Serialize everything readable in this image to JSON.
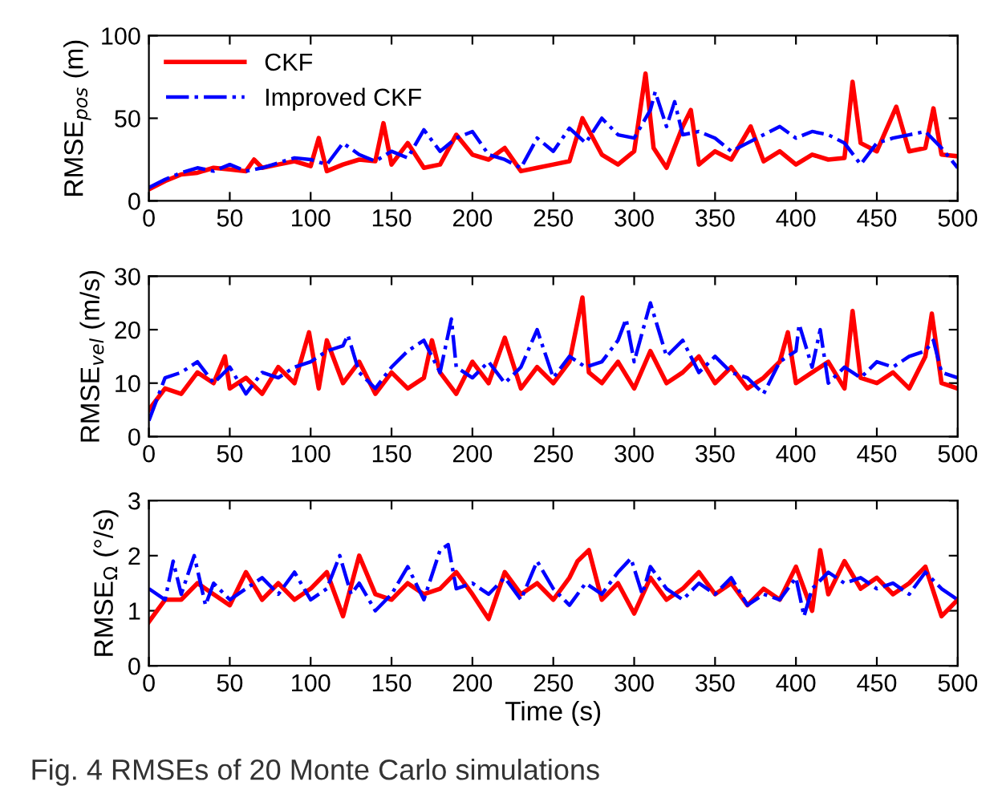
{
  "chart_data": [
    {
      "type": "line",
      "ylabel": "RMSE$_{pos}$ (m)",
      "xlim": [
        0,
        500
      ],
      "ylim": [
        0,
        100
      ],
      "xticks": [
        0,
        50,
        100,
        150,
        200,
        250,
        300,
        350,
        400,
        450,
        500
      ],
      "yticks": [
        0,
        50,
        100
      ],
      "grid": false,
      "legend": "top left",
      "series": [
        {
          "name": "CKF",
          "color": "#ff0000",
          "line_style": "solid",
          "x": [
            0,
            10,
            20,
            30,
            40,
            50,
            60,
            65,
            70,
            80,
            90,
            100,
            105,
            110,
            120,
            130,
            140,
            145,
            150,
            160,
            170,
            180,
            190,
            200,
            210,
            220,
            230,
            240,
            250,
            260,
            268,
            280,
            290,
            300,
            307,
            312,
            320,
            330,
            335,
            340,
            350,
            360,
            372,
            380,
            390,
            400,
            410,
            420,
            430,
            435,
            440,
            450,
            462,
            470,
            480,
            485,
            490,
            500
          ],
          "values": [
            7,
            12,
            16,
            17,
            20,
            19,
            18,
            25,
            20,
            22,
            24,
            21,
            38,
            18,
            22,
            25,
            24,
            47,
            22,
            35,
            20,
            22,
            40,
            28,
            25,
            32,
            18,
            20,
            22,
            24,
            50,
            28,
            22,
            30,
            77,
            32,
            20,
            45,
            55,
            22,
            30,
            25,
            45,
            24,
            30,
            22,
            28,
            25,
            26,
            72,
            35,
            30,
            57,
            30,
            32,
            56,
            28,
            27
          ]
        },
        {
          "name": "Improved CKF",
          "color": "#0000ff",
          "line_style": "dashed",
          "x": [
            0,
            10,
            20,
            30,
            40,
            50,
            60,
            70,
            80,
            90,
            100,
            110,
            120,
            130,
            140,
            150,
            160,
            170,
            180,
            190,
            200,
            210,
            220,
            230,
            240,
            250,
            260,
            270,
            280,
            290,
            300,
            310,
            313,
            320,
            325,
            330,
            340,
            350,
            360,
            370,
            380,
            390,
            400,
            410,
            420,
            430,
            440,
            450,
            460,
            470,
            480,
            490,
            500
          ],
          "values": [
            8,
            13,
            17,
            20,
            18,
            22,
            18,
            20,
            23,
            26,
            25,
            22,
            35,
            28,
            24,
            30,
            26,
            43,
            30,
            38,
            42,
            28,
            25,
            20,
            38,
            30,
            44,
            35,
            50,
            40,
            38,
            55,
            66,
            45,
            60,
            40,
            42,
            38,
            30,
            35,
            40,
            45,
            38,
            42,
            40,
            35,
            22,
            35,
            38,
            40,
            42,
            32,
            20
          ]
        }
      ]
    },
    {
      "type": "line",
      "ylabel": "RMSE$_{vel}$ (m/s)",
      "xlim": [
        0,
        500
      ],
      "ylim": [
        0,
        30
      ],
      "xticks": [
        0,
        50,
        100,
        150,
        200,
        250,
        300,
        350,
        400,
        450,
        500
      ],
      "yticks": [
        0,
        10,
        20,
        30
      ],
      "grid": false,
      "series": [
        {
          "color": "#ff0000",
          "line_style": "solid",
          "x": [
            0,
            10,
            20,
            30,
            40,
            47,
            50,
            60,
            70,
            80,
            90,
            99,
            105,
            110,
            120,
            130,
            140,
            150,
            160,
            170,
            175,
            180,
            190,
            200,
            210,
            220,
            230,
            240,
            250,
            260,
            268,
            272,
            280,
            290,
            300,
            310,
            320,
            330,
            340,
            350,
            360,
            370,
            380,
            390,
            395,
            400,
            410,
            420,
            430,
            435,
            440,
            450,
            460,
            470,
            480,
            484,
            490,
            500
          ],
          "values": [
            5,
            9,
            8,
            12,
            10,
            15,
            9,
            11,
            8,
            13,
            10,
            19.5,
            9,
            18,
            10,
            14,
            8,
            12,
            9,
            11,
            18,
            12,
            8,
            14,
            10,
            18.5,
            9,
            13,
            10,
            14,
            26,
            12,
            10,
            14,
            9,
            16,
            10,
            12,
            15,
            10,
            13,
            9,
            11,
            14,
            19.5,
            10,
            12,
            14,
            9,
            23.5,
            11,
            10,
            12,
            9,
            15,
            23,
            10,
            9
          ]
        },
        {
          "color": "#0000ff",
          "line_style": "dashed",
          "x": [
            0,
            10,
            20,
            30,
            40,
            50,
            60,
            70,
            80,
            90,
            100,
            110,
            120,
            123,
            130,
            140,
            150,
            160,
            170,
            180,
            187,
            190,
            200,
            210,
            220,
            230,
            240,
            250,
            260,
            270,
            280,
            290,
            295,
            300,
            310,
            320,
            330,
            340,
            350,
            360,
            370,
            380,
            390,
            400,
            402,
            410,
            415,
            420,
            430,
            440,
            450,
            460,
            470,
            480,
            485,
            490,
            500
          ],
          "values": [
            3,
            11,
            12,
            14,
            10,
            13,
            8,
            12,
            11,
            13,
            14,
            16,
            17,
            19,
            12,
            9,
            13,
            16,
            18,
            12,
            22,
            13,
            11,
            14,
            10,
            13,
            20,
            11,
            15,
            13,
            14,
            18,
            22,
            14,
            25,
            15,
            18,
            12,
            15,
            12,
            11,
            8,
            14,
            16,
            21,
            13,
            20,
            10,
            13,
            11,
            14,
            13,
            15,
            16,
            18,
            12,
            11
          ]
        }
      ]
    },
    {
      "type": "line",
      "ylabel": "RMSE$_{Ω}$ (°/s)",
      "xlabel": "Time (s)",
      "xlim": [
        0,
        500
      ],
      "ylim": [
        0,
        3
      ],
      "xticks": [
        0,
        50,
        100,
        150,
        200,
        250,
        300,
        350,
        400,
        450,
        500
      ],
      "yticks": [
        0,
        1,
        2,
        3
      ],
      "grid": false,
      "annotations": [
        "Fig. 4 RMSEs of 20 Monte Carlo simulations"
      ],
      "series": [
        {
          "color": "#ff0000",
          "line_style": "solid",
          "x": [
            0,
            10,
            20,
            30,
            40,
            50,
            60,
            70,
            80,
            90,
            100,
            110,
            120,
            130,
            140,
            150,
            160,
            170,
            180,
            190,
            200,
            210,
            220,
            230,
            240,
            250,
            260,
            265,
            272,
            280,
            290,
            300,
            310,
            320,
            330,
            340,
            350,
            360,
            370,
            380,
            390,
            400,
            410,
            415,
            420,
            430,
            440,
            450,
            460,
            470,
            480,
            490,
            500
          ],
          "values": [
            0.8,
            1.2,
            1.2,
            1.5,
            1.3,
            1.1,
            1.7,
            1.2,
            1.5,
            1.2,
            1.4,
            1.7,
            0.9,
            2.0,
            1.3,
            1.2,
            1.5,
            1.3,
            1.4,
            1.7,
            1.3,
            0.85,
            1.7,
            1.3,
            1.5,
            1.2,
            1.6,
            1.9,
            2.1,
            1.2,
            1.5,
            0.95,
            1.6,
            1.2,
            1.4,
            1.7,
            1.3,
            1.5,
            1.1,
            1.4,
            1.2,
            1.8,
            1.0,
            2.1,
            1.3,
            1.9,
            1.4,
            1.6,
            1.3,
            1.5,
            1.8,
            0.9,
            1.2
          ]
        },
        {
          "color": "#0000ff",
          "line_style": "dashed",
          "x": [
            0,
            10,
            15,
            20,
            28,
            35,
            40,
            50,
            60,
            70,
            80,
            90,
            100,
            110,
            118,
            125,
            130,
            140,
            150,
            160,
            170,
            180,
            185,
            190,
            200,
            210,
            220,
            230,
            240,
            250,
            260,
            270,
            280,
            290,
            298,
            305,
            310,
            320,
            330,
            340,
            350,
            360,
            370,
            380,
            390,
            400,
            405,
            410,
            420,
            430,
            440,
            450,
            460,
            470,
            480,
            490,
            500
          ],
          "values": [
            1.4,
            1.2,
            1.9,
            1.3,
            2.0,
            1.1,
            1.5,
            1.2,
            1.4,
            1.6,
            1.3,
            1.7,
            1.2,
            1.4,
            2.0,
            1.3,
            1.5,
            1.0,
            1.3,
            1.8,
            1.2,
            2.1,
            2.2,
            1.4,
            1.5,
            1.3,
            1.6,
            1.2,
            1.9,
            1.4,
            1.1,
            1.5,
            1.3,
            1.7,
            1.95,
            1.3,
            1.8,
            1.4,
            1.2,
            1.5,
            1.3,
            1.6,
            1.1,
            1.3,
            1.2,
            1.6,
            0.9,
            1.4,
            1.7,
            1.5,
            1.6,
            1.4,
            1.5,
            1.3,
            1.7,
            1.4,
            1.2
          ]
        }
      ]
    }
  ]
}
